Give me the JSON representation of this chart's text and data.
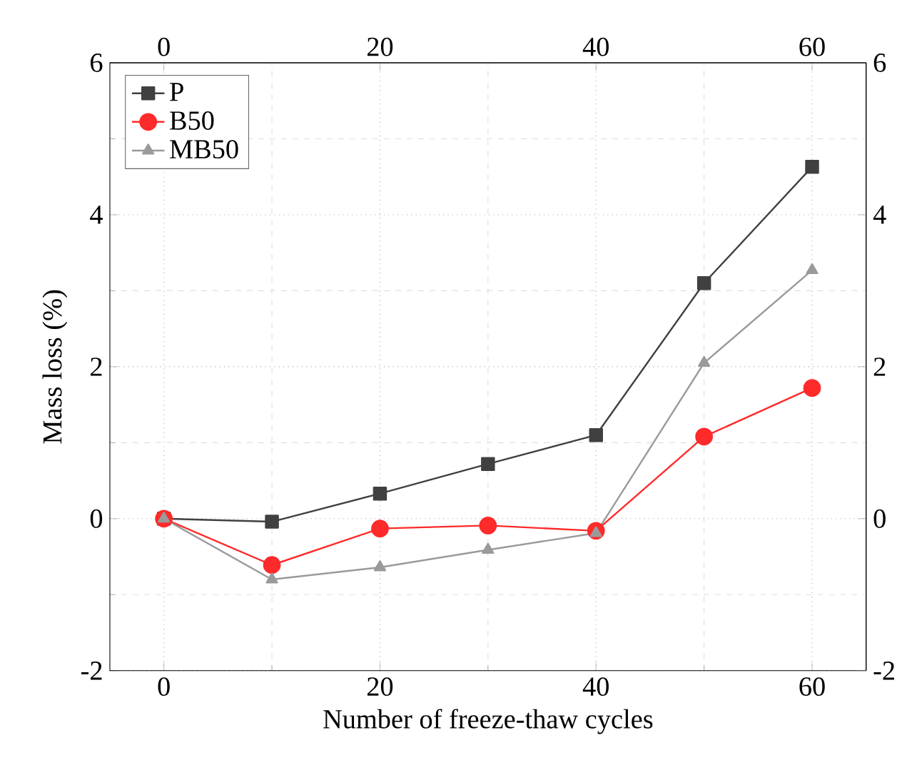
{
  "chart_data": {
    "type": "line",
    "xlabel": "Number of freeze-thaw cycles",
    "ylabel": "Mass loss (%)",
    "x": [
      0,
      10,
      20,
      30,
      40,
      50,
      60
    ],
    "series": [
      {
        "name": "P",
        "color": "#404040",
        "marker": "square",
        "values": [
          0,
          -0.04,
          0.33,
          0.72,
          1.1,
          3.1,
          4.63
        ]
      },
      {
        "name": "B50",
        "color": "#ff2a2a",
        "marker": "circle",
        "values": [
          0,
          -0.61,
          -0.13,
          -0.09,
          -0.16,
          1.08,
          1.72
        ]
      },
      {
        "name": "MB50",
        "color": "#9a9a9a",
        "marker": "triangle",
        "values": [
          0,
          -0.8,
          -0.64,
          -0.41,
          -0.19,
          2.05,
          3.27
        ]
      }
    ],
    "xlim": [
      -5,
      65
    ],
    "xticks": [
      0,
      20,
      40,
      60
    ],
    "ylim": [
      -2,
      6
    ],
    "yticks": [
      -2,
      0,
      2,
      4,
      6
    ],
    "x2lim": [
      -5,
      65
    ],
    "x2ticks": [
      0,
      20,
      40,
      60
    ],
    "y2lim": [
      -2,
      6
    ],
    "y2ticks": [
      -2,
      0,
      2,
      4,
      6
    ],
    "grid": true,
    "legend": "top left",
    "line_style": "solid"
  }
}
